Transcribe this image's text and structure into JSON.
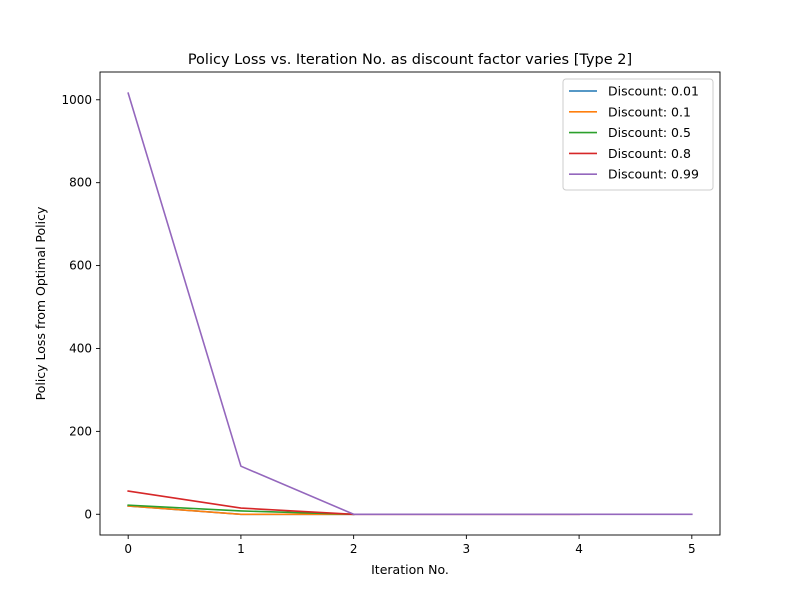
{
  "chart_data": {
    "type": "line",
    "title": "Policy Loss vs. Iteration No. as discount factor varies [Type 2]",
    "xlabel": "Iteration No.",
    "ylabel": "Policy Loss from Optimal Policy",
    "xlim": [
      -0.25,
      5.25
    ],
    "ylim": [
      -50,
      1067
    ],
    "xticks": [
      0,
      1,
      2,
      3,
      4,
      5
    ],
    "yticks": [
      0,
      200,
      400,
      600,
      800,
      1000
    ],
    "grid": false,
    "legend_position": "top-right",
    "series": [
      {
        "name": "Discount: 0.01",
        "color": "#1f77b4",
        "x": [
          0,
          1,
          2
        ],
        "values": [
          20,
          0,
          0
        ]
      },
      {
        "name": "Discount: 0.1",
        "color": "#ff7f0e",
        "x": [
          0,
          1,
          2
        ],
        "values": [
          20,
          0,
          0
        ]
      },
      {
        "name": "Discount: 0.5",
        "color": "#2ca02c",
        "x": [
          0,
          1,
          2
        ],
        "values": [
          22,
          8,
          0
        ]
      },
      {
        "name": "Discount: 0.8",
        "color": "#d62728",
        "x": [
          0,
          1,
          2,
          3,
          4
        ],
        "values": [
          56,
          15,
          0,
          0,
          0
        ]
      },
      {
        "name": "Discount: 0.99",
        "color": "#9467bd",
        "x": [
          0,
          1,
          2,
          3,
          4,
          5
        ],
        "values": [
          1016,
          116,
          0,
          0,
          0,
          0
        ]
      }
    ]
  }
}
